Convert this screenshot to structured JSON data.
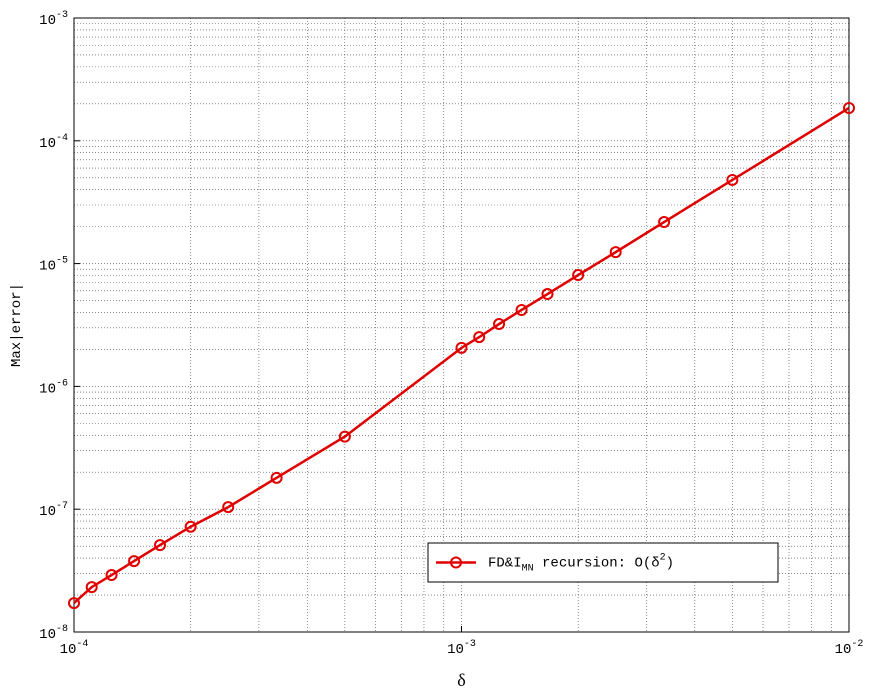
{
  "chart_data": {
    "type": "line",
    "log_x": true,
    "log_y": true,
    "grid": true,
    "minor_grid": true,
    "x_label": "δ",
    "y_label": "Max|error|",
    "legend": "lower right",
    "xlim": [
      0.0001,
      0.01
    ],
    "ylim": [
      1e-08,
      0.001
    ],
    "xticks": [
      {
        "value": 0.0001,
        "label": "10^{-4}"
      },
      {
        "value": 0.001,
        "label": "10^{-3}"
      },
      {
        "value": 0.01,
        "label": "10^{-2}"
      }
    ],
    "yticks": [
      {
        "value": 1e-08,
        "label": "10^{-8}"
      },
      {
        "value": 1e-07,
        "label": "10^{-7}"
      },
      {
        "value": 1e-06,
        "label": "10^{-6}"
      },
      {
        "value": 1e-05,
        "label": "10^{-5}"
      },
      {
        "value": 0.0001,
        "label": "10^{-4}"
      },
      {
        "value": 0.001,
        "label": "10^{-3}"
      }
    ],
    "x": [
      0.0001,
      0.0001111,
      0.000125,
      0.0001429,
      0.0001667,
      0.0002,
      0.00025,
      0.0003333,
      0.0005,
      0.001,
      0.001111,
      0.00125,
      0.001429,
      0.001667,
      0.002,
      0.0025,
      0.003333,
      0.005,
      0.01
    ],
    "series": [
      {
        "name": "FD&I_{MN} recursion: O(δ^{2})",
        "color": "#e00000",
        "values": [
          1.72e-08,
          2.32e-08,
          2.91e-08,
          3.78e-08,
          5.1e-08,
          7.2e-08,
          1.04e-07,
          1.8e-07,
          3.9e-07,
          2.06e-06,
          2.52e-06,
          3.22e-06,
          4.19e-06,
          5.65e-06,
          8.07e-06,
          1.24e-05,
          2.18e-05,
          4.8e-05,
          0.000185
        ]
      }
    ]
  }
}
